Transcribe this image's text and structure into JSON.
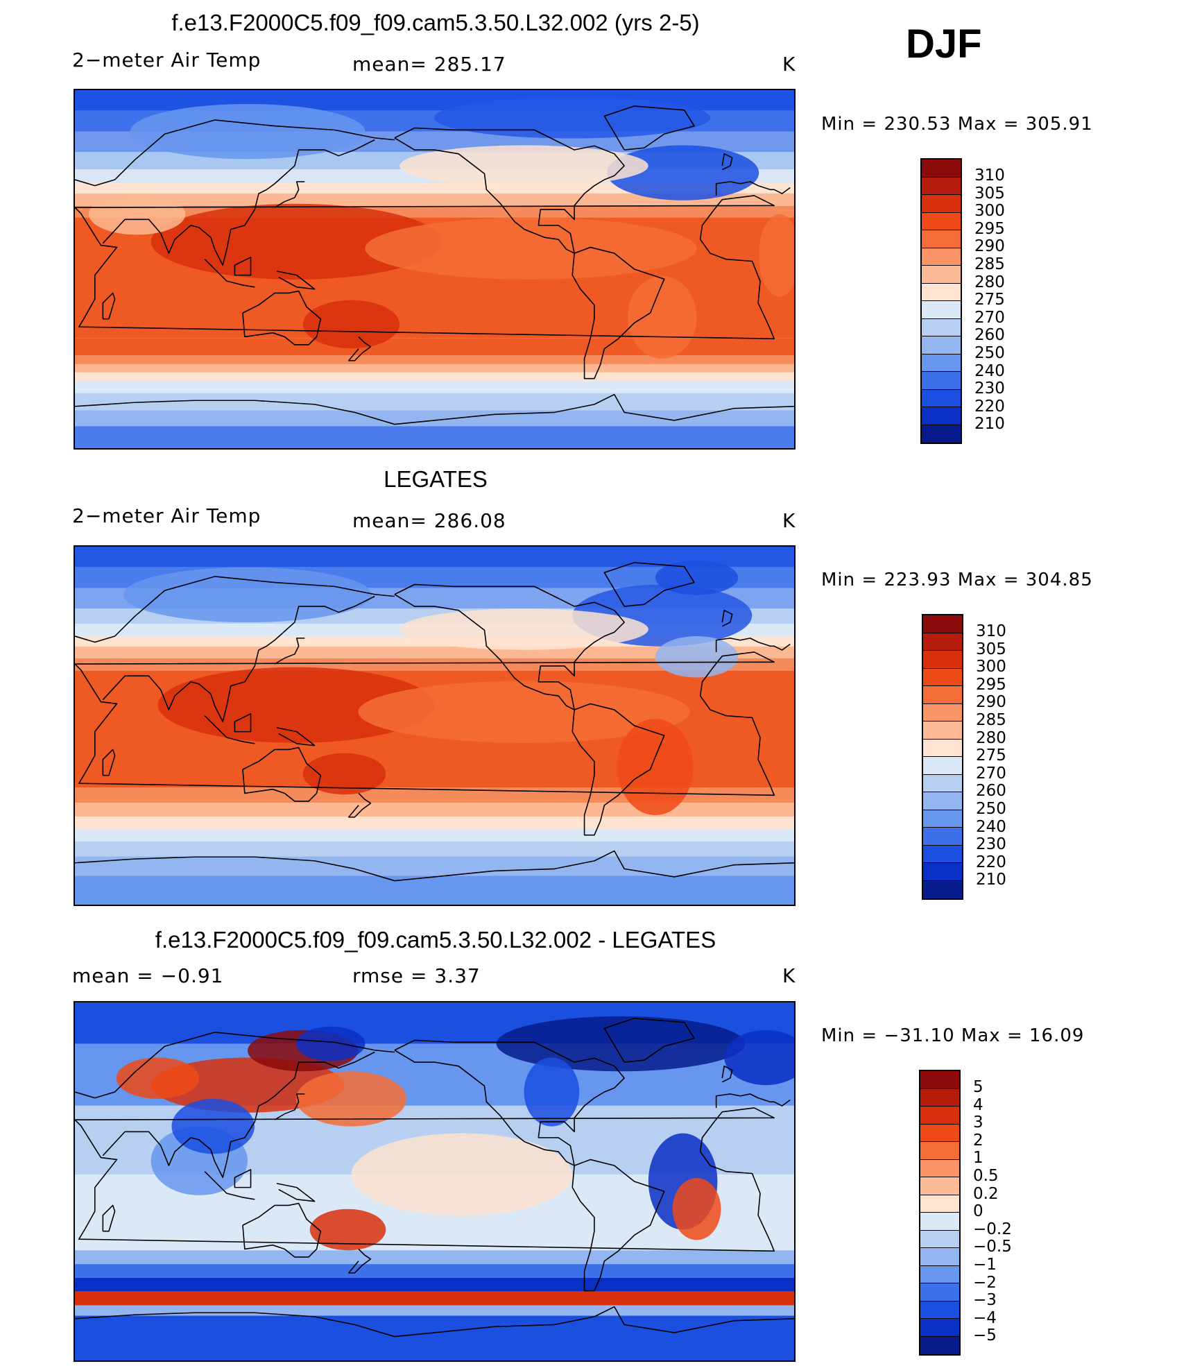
{
  "season": "DJF",
  "panels": [
    {
      "id": "model",
      "title": "f.e13.F2000C5.f09_f09.cam5.3.50.L32.002 (yrs 2-5)",
      "left_label": "2−meter Air Temp",
      "center_label": "mean=  285.17",
      "units": "K",
      "minmax": "Min  =  230.53  Max  =  305.91",
      "colorbar": {
        "labels": [
          "310",
          "305",
          "300",
          "295",
          "290",
          "285",
          "280",
          "275",
          "270",
          "260",
          "250",
          "240",
          "230",
          "220",
          "210"
        ],
        "colors": [
          "#8b0b0a",
          "#b51c0c",
          "#d8300d",
          "#ee4a18",
          "#f56d36",
          "#fb9567",
          "#fdbb97",
          "#fde3d0",
          "#dbe8f6",
          "#b7d0f2",
          "#93b5f0",
          "#6796ee",
          "#3c71ea",
          "#1b4fe0",
          "#0a2fc4",
          "#061c8c"
        ]
      },
      "map_style": "model"
    },
    {
      "id": "obs",
      "title": "LEGATES",
      "left_label": "2−meter Air Temp",
      "center_label": "mean=  286.08",
      "units": "K",
      "minmax": "Min  =  223.93  Max  =  304.85",
      "colorbar": {
        "labels": [
          "310",
          "305",
          "300",
          "295",
          "290",
          "285",
          "280",
          "275",
          "270",
          "260",
          "250",
          "240",
          "230",
          "220",
          "210"
        ],
        "colors": [
          "#8b0b0a",
          "#b51c0c",
          "#d8300d",
          "#ee4a18",
          "#f56d36",
          "#fb9567",
          "#fdbb97",
          "#fde3d0",
          "#dbe8f6",
          "#b7d0f2",
          "#93b5f0",
          "#6796ee",
          "#3c71ea",
          "#1b4fe0",
          "#0a2fc4",
          "#061c8c"
        ]
      },
      "map_style": "obs"
    },
    {
      "id": "diff",
      "title": "f.e13.F2000C5.f09_f09.cam5.3.50.L32.002 - LEGATES",
      "left_label": "mean =    −0.91",
      "center_label": "rmse =     3.37",
      "units": "K",
      "minmax": "Min  =  −31.10  Max  =    16.09",
      "colorbar": {
        "labels": [
          "5",
          "4",
          "3",
          "2",
          "1",
          "0.5",
          "0.2",
          "0",
          "−0.2",
          "−0.5",
          "−1",
          "−2",
          "−3",
          "−4",
          "−5"
        ],
        "colors": [
          "#8b0b0a",
          "#b51c0c",
          "#d8300d",
          "#ee4a18",
          "#f56d36",
          "#fb9567",
          "#fdbb97",
          "#fde3d0",
          "#dbe8f6",
          "#b7d0f2",
          "#93b5f0",
          "#6796ee",
          "#3c71ea",
          "#1b4fe0",
          "#0a2fc4",
          "#061c8c"
        ]
      },
      "map_style": "diff"
    }
  ]
}
